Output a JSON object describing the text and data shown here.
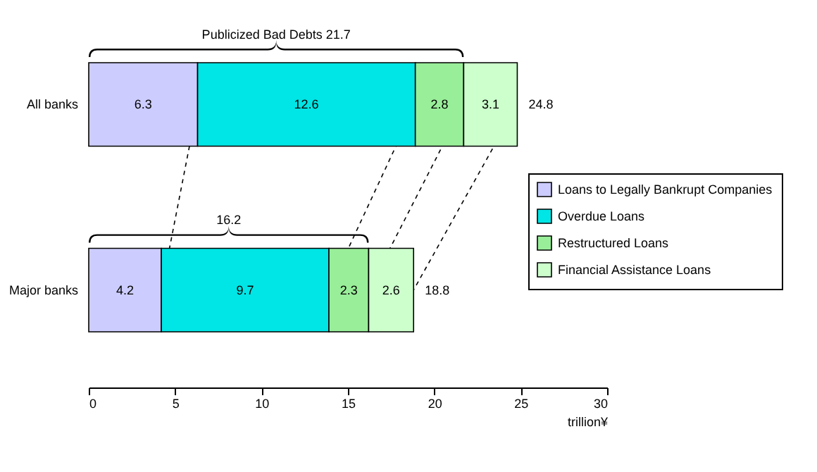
{
  "chart_data": {
    "type": "bar",
    "orientation": "horizontal",
    "stacked": true,
    "categories": [
      "All banks",
      "Major banks"
    ],
    "series": [
      {
        "name": "Loans to Legally Bankrupt Companies",
        "color": "#ccccff",
        "values": [
          6.3,
          4.2
        ]
      },
      {
        "name": "Overdue Loans",
        "color": "#00e5e5",
        "values": [
          12.6,
          9.7
        ]
      },
      {
        "name": "Restructured Loans",
        "color": "#99ee99",
        "values": [
          2.8,
          2.3
        ]
      },
      {
        "name": "Financial Assistance Loans",
        "color": "#ccffcc",
        "values": [
          3.1,
          2.6
        ]
      }
    ],
    "data_labels": true,
    "totals": [
      "24.8",
      "18.8"
    ],
    "annotations": [
      "Publicized Bad Debts  21.7",
      "16.2"
    ],
    "xlabel": "trillion¥",
    "xlim": [
      0,
      30
    ],
    "xticks": [
      0,
      5,
      10,
      15,
      20,
      25,
      30
    ],
    "legend": "right",
    "grid": false
  }
}
